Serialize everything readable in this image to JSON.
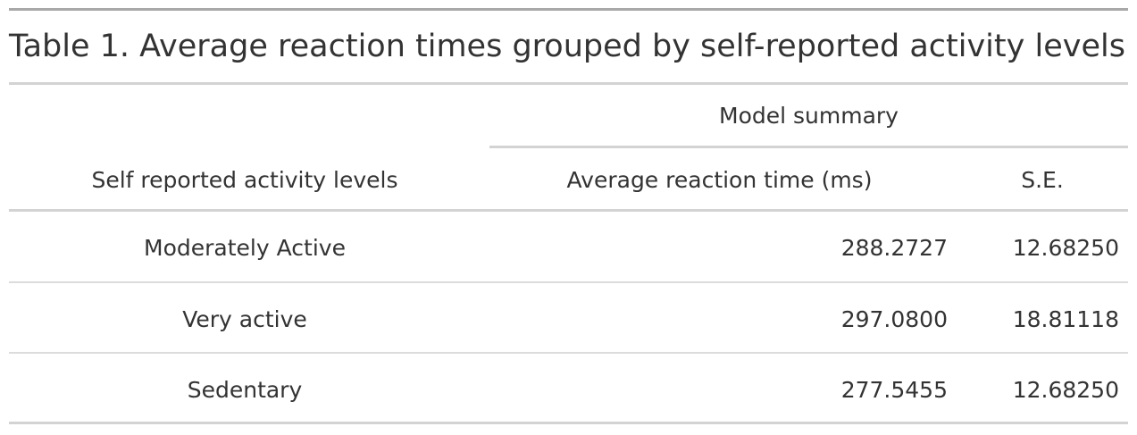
{
  "table": {
    "title": "Table 1. Average reaction times grouped by self-reported activity levels",
    "spanner": "Model summary",
    "columns": {
      "activity": "Self reported activity levels",
      "avg": "Average reaction time (ms)",
      "se": "S.E."
    },
    "rows": [
      {
        "activity": "Moderately Active",
        "avg": "288.2727",
        "se": "12.68250"
      },
      {
        "activity": "Very active",
        "avg": "297.0800",
        "se": "18.81118"
      },
      {
        "activity": "Sedentary",
        "avg": "277.5455",
        "se": "12.68250"
      }
    ]
  }
}
